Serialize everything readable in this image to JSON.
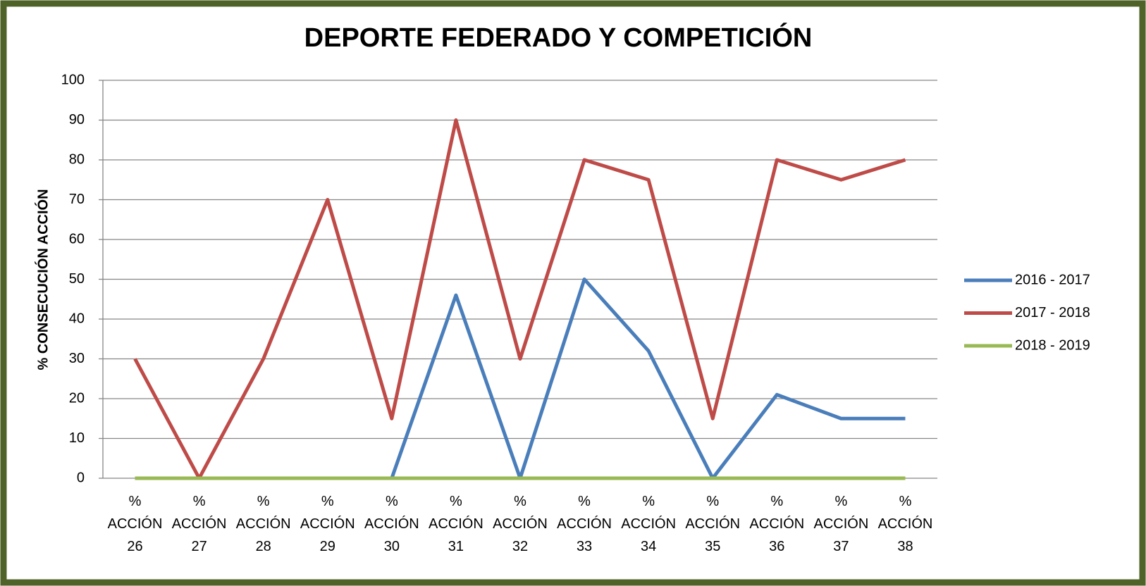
{
  "chart_data": {
    "type": "line",
    "title": "DEPORTE FEDERADO Y COMPETICIÓN",
    "y_label": "% CONSECUCIÓN ACCIÓN",
    "categories": [
      "% ACCIÓN 26",
      "% ACCIÓN 27",
      "% ACCIÓN 28",
      "% ACCIÓN 29",
      "% ACCIÓN 30",
      "% ACCIÓN 31",
      "% ACCIÓN 32",
      "% ACCIÓN 33",
      "% ACCIÓN 34",
      "% ACCIÓN 35",
      "% ACCIÓN 36",
      "% ACCIÓN 37",
      "% ACCIÓN 38"
    ],
    "series": [
      {
        "name": "2016 - 2017",
        "color": "#4a7ebb",
        "values": [
          0,
          0,
          0,
          0,
          0,
          46,
          0,
          50,
          32,
          0,
          21,
          15,
          15
        ]
      },
      {
        "name": "2017 - 2018",
        "color": "#be4b48",
        "values": [
          30,
          0,
          30,
          70,
          15,
          90,
          30,
          80,
          75,
          15,
          80,
          75,
          80
        ]
      },
      {
        "name": "2018 - 2019",
        "color": "#98b954",
        "values": [
          0,
          0,
          0,
          0,
          0,
          0,
          0,
          0,
          0,
          0,
          0,
          0,
          0
        ]
      }
    ],
    "ylim": [
      0,
      100
    ],
    "yticks": [
      0,
      10,
      20,
      30,
      40,
      50,
      60,
      70,
      80,
      90,
      100
    ],
    "grid": true,
    "legend": "right"
  }
}
